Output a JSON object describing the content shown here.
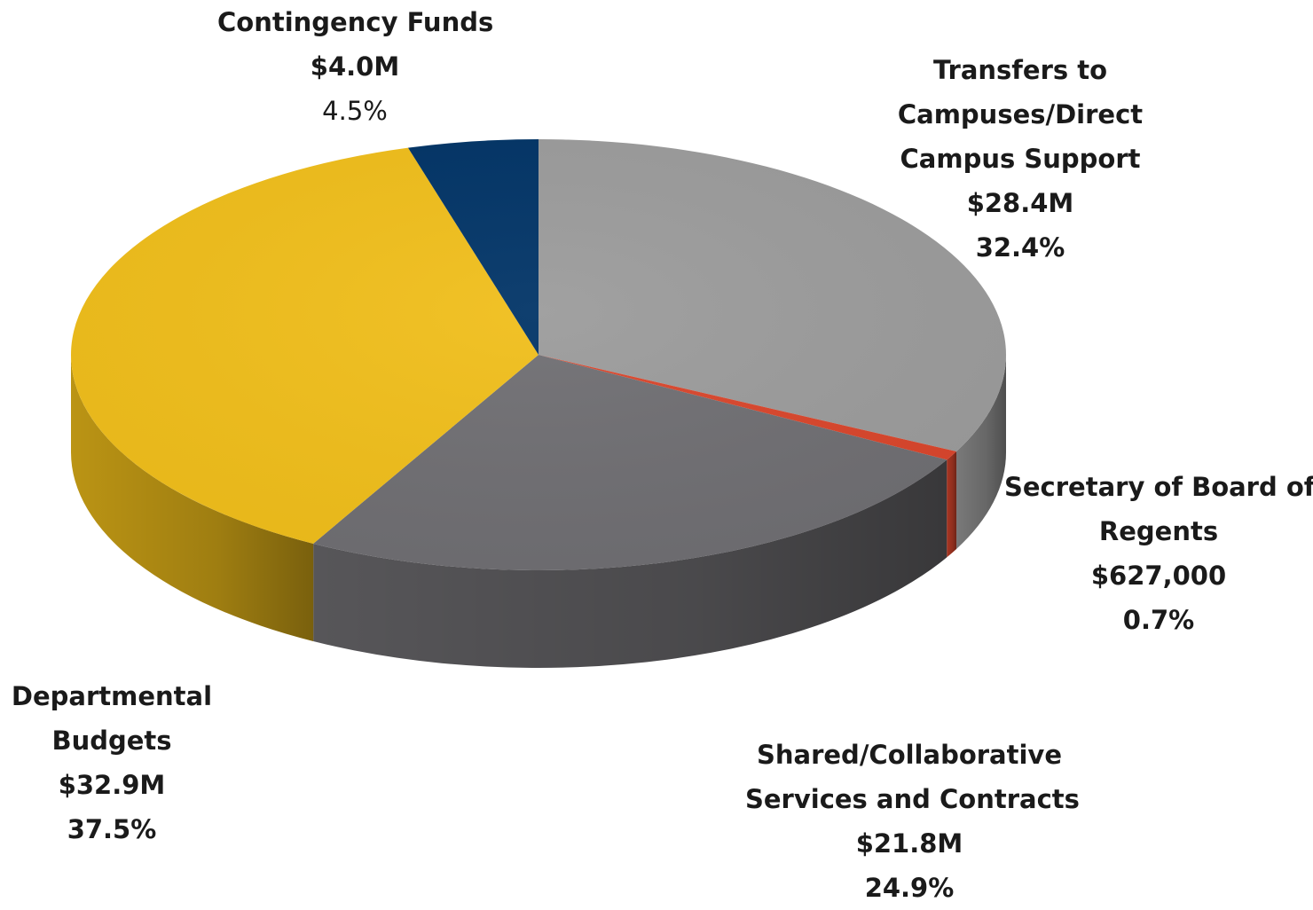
{
  "chart_data": {
    "type": "pie",
    "style": "3d",
    "colors": {
      "transfers": "#9b9b9b",
      "secretary": "#d9452b",
      "shared": "#6f6e72",
      "departmental": "#f0be1a",
      "contingency": "#003366"
    },
    "slices": [
      {
        "key": "transfers",
        "name_lines": [
          "Transfers to",
          "Campuses/Direct",
          "Campus Support"
        ],
        "amount": "$28.4M",
        "percent_label": "32.4%",
        "value": 32.4
      },
      {
        "key": "secretary",
        "name_lines": [
          "Secretary of Board of",
          "Regents"
        ],
        "amount": "$627,000",
        "percent_label": "0.7%",
        "value": 0.7
      },
      {
        "key": "shared",
        "name_lines": [
          "Shared/Collaborative",
          "Services and Contracts"
        ],
        "amount": "$21.8M",
        "percent_label": "24.9%",
        "value": 24.9
      },
      {
        "key": "departmental",
        "name_lines": [
          "Departmental",
          "Budgets"
        ],
        "amount": "$32.9M",
        "percent_label": "37.5%",
        "value": 37.5
      },
      {
        "key": "contingency",
        "name_lines": [
          "Contingency Funds"
        ],
        "amount": "$4.0M",
        "percent_label": "4.5%",
        "value": 4.5
      }
    ]
  }
}
